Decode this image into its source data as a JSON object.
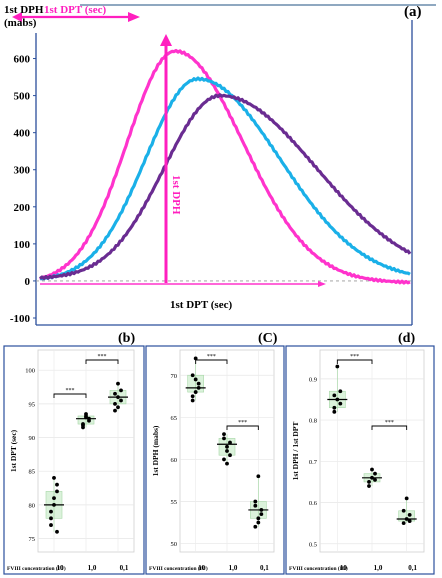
{
  "chart_data": [
    {
      "panel": "(a)",
      "type": "line",
      "ylabel_line1": "1st DPH",
      "ylabel_line2": "(mabs)",
      "xlabel": "1st DPT (sec)",
      "top_arrow_label": "1st DPT (sec)",
      "vertical_arrow_label": "1st DPH",
      "ylim": [
        -100,
        650
      ],
      "yticks": [
        "600",
        "500",
        "400",
        "300",
        "200",
        "100",
        "0",
        "-100"
      ],
      "series": [
        {
          "color": "#ff33cc",
          "peak_y": 620,
          "peak_x_rel": 0.37
        },
        {
          "color": "#1ab0e8",
          "peak_y": 545,
          "peak_x_rel": 0.43
        },
        {
          "color": "#6a2c91",
          "peak_y": 500,
          "peak_x_rel": 0.49
        }
      ]
    },
    {
      "panel": "(b)",
      "type": "scatter",
      "ylabel": "1st DPT (sec)",
      "xlabel_title": "FVIII concentration (IU)",
      "categories": [
        "10",
        "1,0",
        "0,1"
      ],
      "ylim": [
        73,
        103
      ],
      "yticks": [
        "100",
        "95",
        "90",
        "85",
        "80",
        "75"
      ],
      "means": [
        80.0,
        92.8,
        96.0
      ],
      "points": [
        [
          79,
          81,
          83,
          77,
          80,
          82,
          78,
          84,
          76
        ],
        [
          92,
          93,
          92.5,
          91.5,
          93.5,
          92.8,
          91.8,
          93.2
        ],
        [
          95,
          96,
          97,
          94,
          98,
          95.5,
          96.5,
          94.5
        ]
      ],
      "significance": [
        {
          "from": 0,
          "to": 1,
          "label": "***"
        },
        {
          "from": 1,
          "to": 2,
          "label": "***"
        }
      ]
    },
    {
      "panel": "(C)",
      "type": "scatter",
      "ylabel": "1st DPH (mabs)",
      "xlabel_title": "FVIII concentration (IU)",
      "categories": [
        "10",
        "1,0",
        "0,1"
      ],
      "ylim": [
        49,
        73
      ],
      "yticks": [
        "70",
        "65",
        "60",
        "55",
        "50"
      ],
      "means": [
        68.5,
        61.8,
        54.0
      ],
      "points": [
        [
          67,
          68,
          69,
          70,
          72,
          68.5,
          67.5,
          69.5
        ],
        [
          60,
          61,
          62,
          63,
          61.5,
          60.5,
          62.5,
          59.5
        ],
        [
          52,
          53,
          54,
          55,
          58,
          53.5,
          54.5,
          52.5
        ]
      ],
      "significance": [
        {
          "from": 0,
          "to": 1,
          "label": "***"
        },
        {
          "from": 1,
          "to": 2,
          "label": "***"
        }
      ]
    },
    {
      "panel": "(d)",
      "type": "scatter",
      "ylabel": "1st DPH / 1st DPT",
      "xlabel_title": "FVIII concentration (IU)",
      "categories": [
        "10",
        "1,0",
        "0,1"
      ],
      "ylim": [
        0.48,
        0.97
      ],
      "yticks": [
        "0.9",
        "0.8",
        "0.7",
        "0.6",
        "0.5"
      ],
      "means": [
        0.85,
        0.66,
        0.56
      ],
      "points": [
        [
          0.83,
          0.85,
          0.87,
          0.82,
          0.93,
          0.84,
          0.86
        ],
        [
          0.65,
          0.66,
          0.67,
          0.64,
          0.68,
          0.655
        ],
        [
          0.55,
          0.56,
          0.57,
          0.58,
          0.61,
          0.555
        ]
      ],
      "significance": [
        {
          "from": 0,
          "to": 1,
          "label": "***"
        },
        {
          "from": 1,
          "to": 2,
          "label": "***"
        }
      ]
    }
  ],
  "panel_labels": {
    "a": "(a)",
    "b": "(b)",
    "c": "(C)",
    "d": "(d)"
  }
}
